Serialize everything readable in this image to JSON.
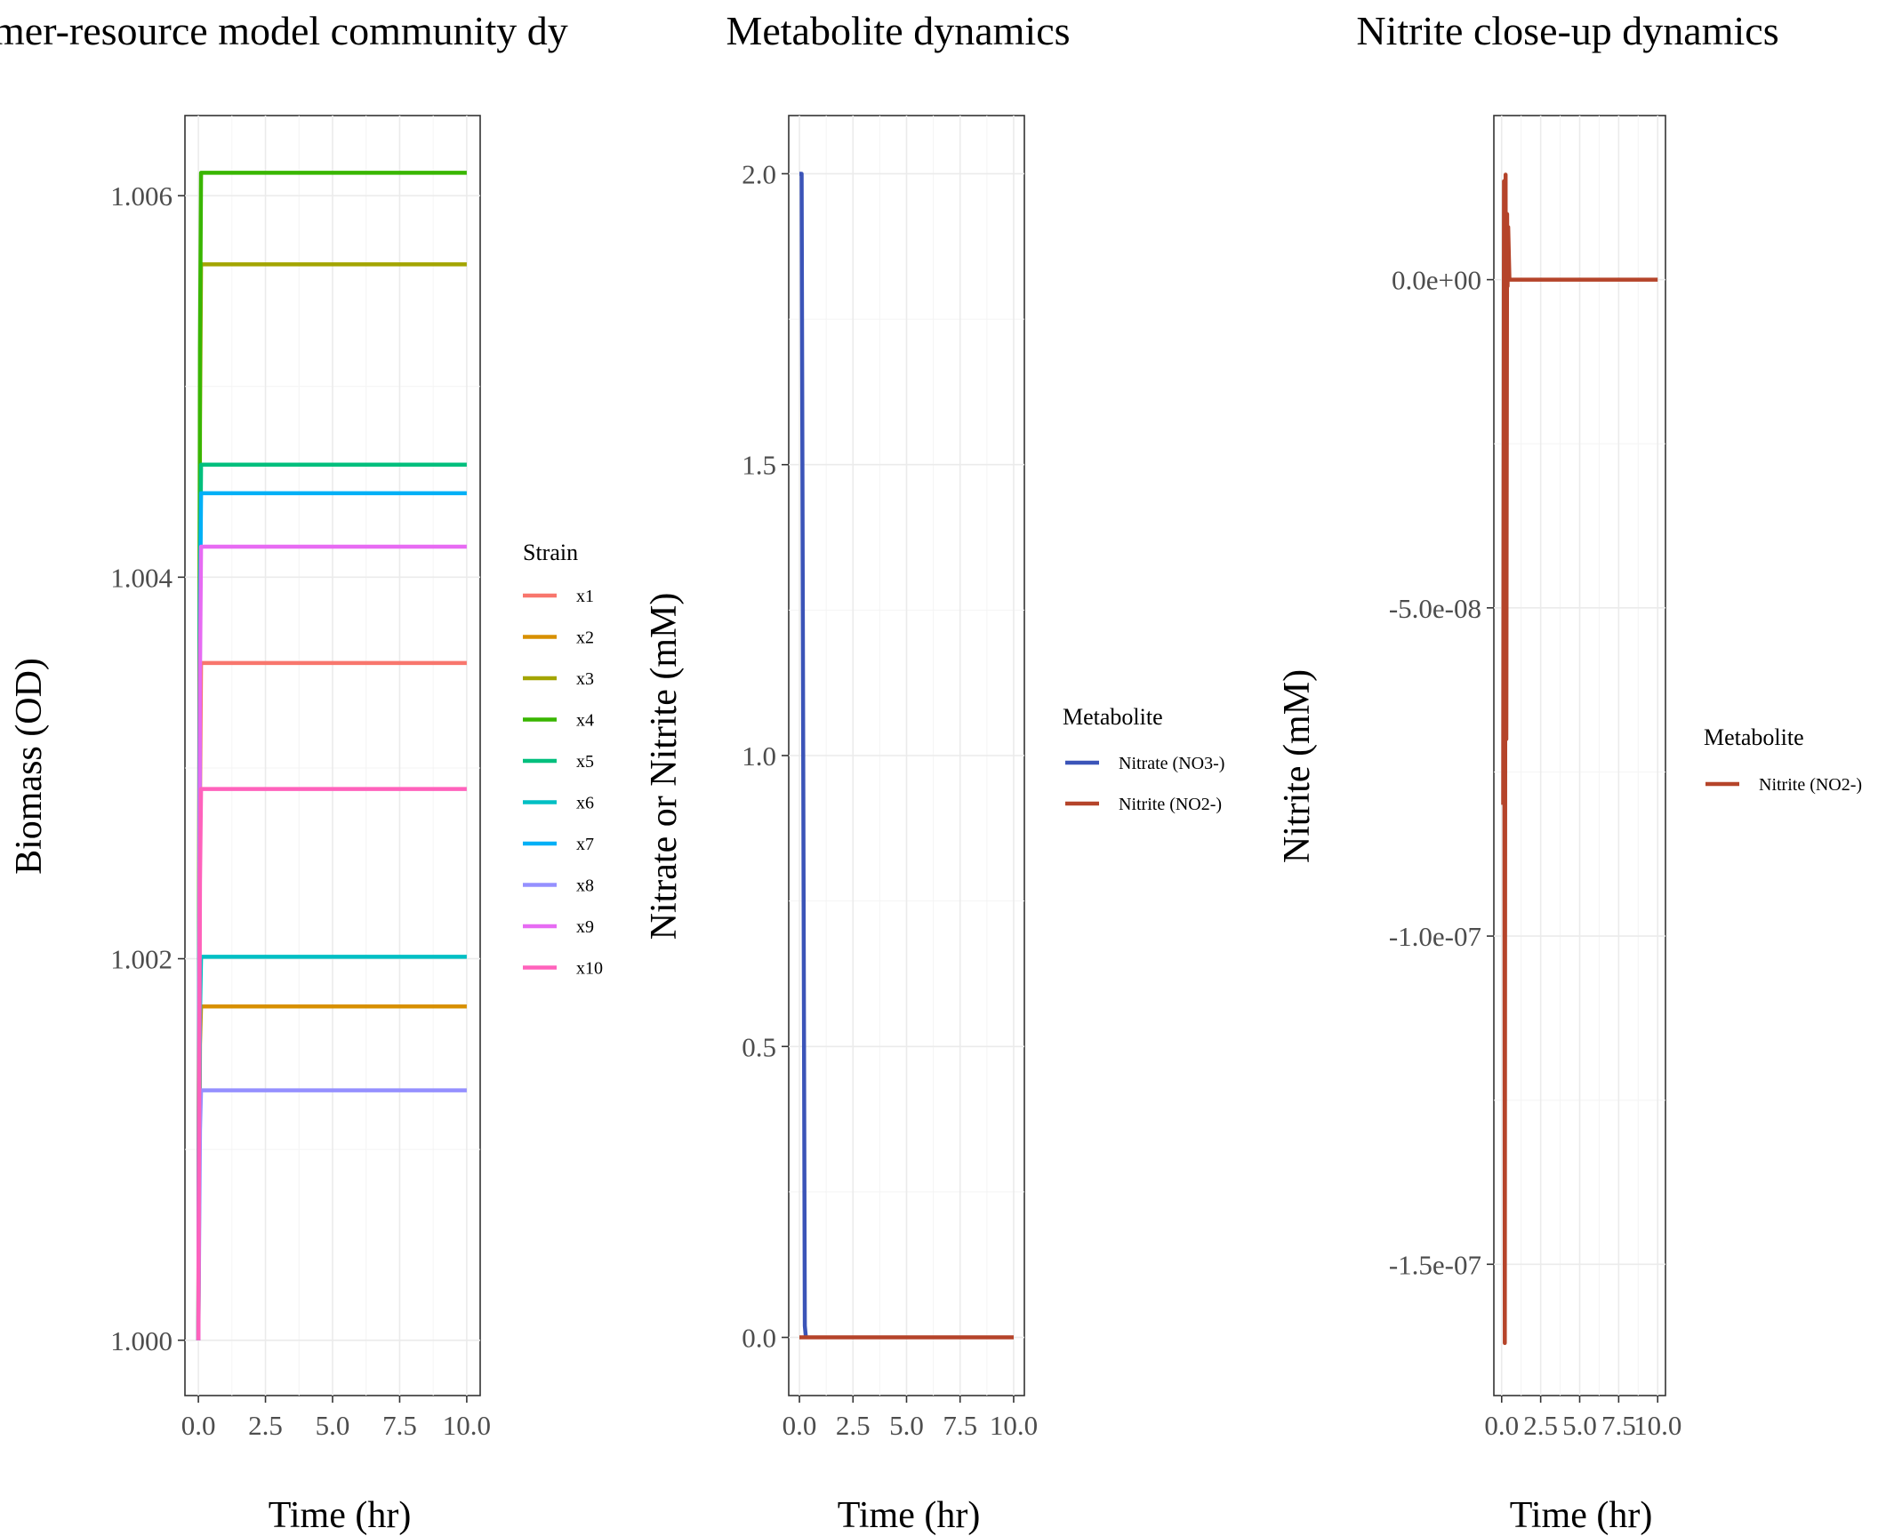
{
  "chart_data": [
    {
      "type": "line",
      "title": "Consumer-resource model community dynamics",
      "title_visible": "mer-resource model community dy",
      "xlabel": "Time (hr)",
      "ylabel": "Biomass (OD)",
      "xlim": [
        -0.5,
        10.5
      ],
      "ylim": [
        0.99971,
        1.00642
      ],
      "x_ticks": [
        0,
        2.5,
        5,
        7.5,
        10
      ],
      "x_tick_labels": [
        "0.0",
        "2.5",
        "5.0",
        "7.5",
        "10.0"
      ],
      "y_ticks": [
        1.0,
        1.002,
        1.004,
        1.006
      ],
      "y_tick_labels": [
        "1.000",
        "1.002",
        "1.004",
        "1.006"
      ],
      "grid": true,
      "legend": {
        "title": "Strain",
        "placement": "right"
      },
      "series": [
        {
          "name": "x1",
          "color": "#F8766D",
          "x": [
            0,
            0.06,
            0.1,
            10
          ],
          "y": [
            1.0,
            1.0028,
            1.00355,
            1.00355
          ]
        },
        {
          "name": "x2",
          "color": "#D89000",
          "x": [
            0,
            0.06,
            0.1,
            10
          ],
          "y": [
            1.0,
            1.00155,
            1.00175,
            1.00175
          ]
        },
        {
          "name": "x3",
          "color": "#A3A500",
          "x": [
            0,
            0.06,
            0.1,
            10
          ],
          "y": [
            1.0,
            1.0048,
            1.00564,
            1.00564
          ]
        },
        {
          "name": "x4",
          "color": "#39B600",
          "x": [
            0,
            0.06,
            0.1,
            10
          ],
          "y": [
            1.0,
            1.0052,
            1.00612,
            1.00612
          ]
        },
        {
          "name": "x5",
          "color": "#00BF7D",
          "x": [
            0,
            0.06,
            0.1,
            10
          ],
          "y": [
            1.0,
            1.0039,
            1.00459,
            1.00459
          ]
        },
        {
          "name": "x6",
          "color": "#00BFC4",
          "x": [
            0,
            0.06,
            0.1,
            10
          ],
          "y": [
            1.0,
            1.0017,
            1.00201,
            1.00201
          ]
        },
        {
          "name": "x7",
          "color": "#00B0F6",
          "x": [
            0,
            0.06,
            0.1,
            10
          ],
          "y": [
            1.0,
            1.0038,
            1.00444,
            1.00444
          ]
        },
        {
          "name": "x8",
          "color": "#9590FF",
          "x": [
            0,
            0.06,
            0.1,
            10
          ],
          "y": [
            1.0,
            1.0011,
            1.00131,
            1.00131
          ]
        },
        {
          "name": "x9",
          "color": "#E76BF3",
          "x": [
            0,
            0.06,
            0.1,
            10
          ],
          "y": [
            1.0,
            1.0035,
            1.00416,
            1.00416
          ]
        },
        {
          "name": "x10",
          "color": "#FF62BC",
          "x": [
            0,
            0.06,
            0.1,
            10
          ],
          "y": [
            1.0,
            1.0024,
            1.00289,
            1.00289
          ]
        }
      ]
    },
    {
      "type": "line",
      "title": "Metabolite dynamics",
      "xlabel": "Time (hr)",
      "ylabel": "Nitrate or Nitrite (mM)",
      "xlim": [
        -0.5,
        10.5
      ],
      "ylim": [
        -0.1,
        2.1
      ],
      "x_ticks": [
        0,
        2.5,
        5,
        7.5,
        10
      ],
      "x_tick_labels": [
        "0.0",
        "2.5",
        "5.0",
        "7.5",
        "10.0"
      ],
      "y_ticks": [
        0,
        0.5,
        1.0,
        1.5,
        2.0
      ],
      "y_tick_labels": [
        "0.0",
        "0.5",
        "1.0",
        "1.5",
        "2.0"
      ],
      "grid": true,
      "legend": {
        "title": "Metabolite",
        "placement": "right"
      },
      "series": [
        {
          "name": "Nitrate (NO3-)",
          "color": "#3B54B8",
          "x": [
            0,
            0.1,
            0.15,
            0.2,
            0.25,
            0.3
          ],
          "y": [
            2.0,
            2.0,
            1.33,
            0.67,
            0.02,
            0.0
          ]
        },
        {
          "name": "Nitrite (NO2-)",
          "color": "#B5442A",
          "x": [
            0,
            0.1,
            10
          ],
          "y": [
            0,
            0,
            0
          ]
        }
      ]
    },
    {
      "type": "line",
      "title": "Nitrite close-up dynamics",
      "xlabel": "Time (hr)",
      "ylabel": "Nitrite (mM)",
      "xlim": [
        -0.5,
        10.5
      ],
      "ylim": [
        -1.7e-07,
        2.5e-08
      ],
      "x_ticks": [
        0,
        2.5,
        5,
        7.5,
        10
      ],
      "x_tick_labels": [
        "0.0",
        "2.5",
        "5.0",
        "7.5",
        "10.0"
      ],
      "y_ticks": [
        -1.5e-07,
        -1e-07,
        -5e-08,
        0
      ],
      "y_tick_labels": [
        "-1.5e-07",
        "-1.0e-07",
        "-5.0e-08",
        "0.0e+00"
      ],
      "grid": true,
      "legend": {
        "title": "Metabolite",
        "placement": "right"
      },
      "series": [
        {
          "name": "Nitrite (NO2-)",
          "color": "#B5442A",
          "x": [
            0.1,
            0.15,
            0.2,
            0.25,
            0.3,
            0.35,
            0.38,
            0.42,
            0.5,
            0.6,
            10
          ],
          "y": [
            -8e-08,
            1.5e-08,
            -1.62e-07,
            1.6e-08,
            -7e-08,
            1e-08,
            -1e-09,
            8e-09,
            0,
            0,
            0
          ]
        }
      ]
    }
  ]
}
